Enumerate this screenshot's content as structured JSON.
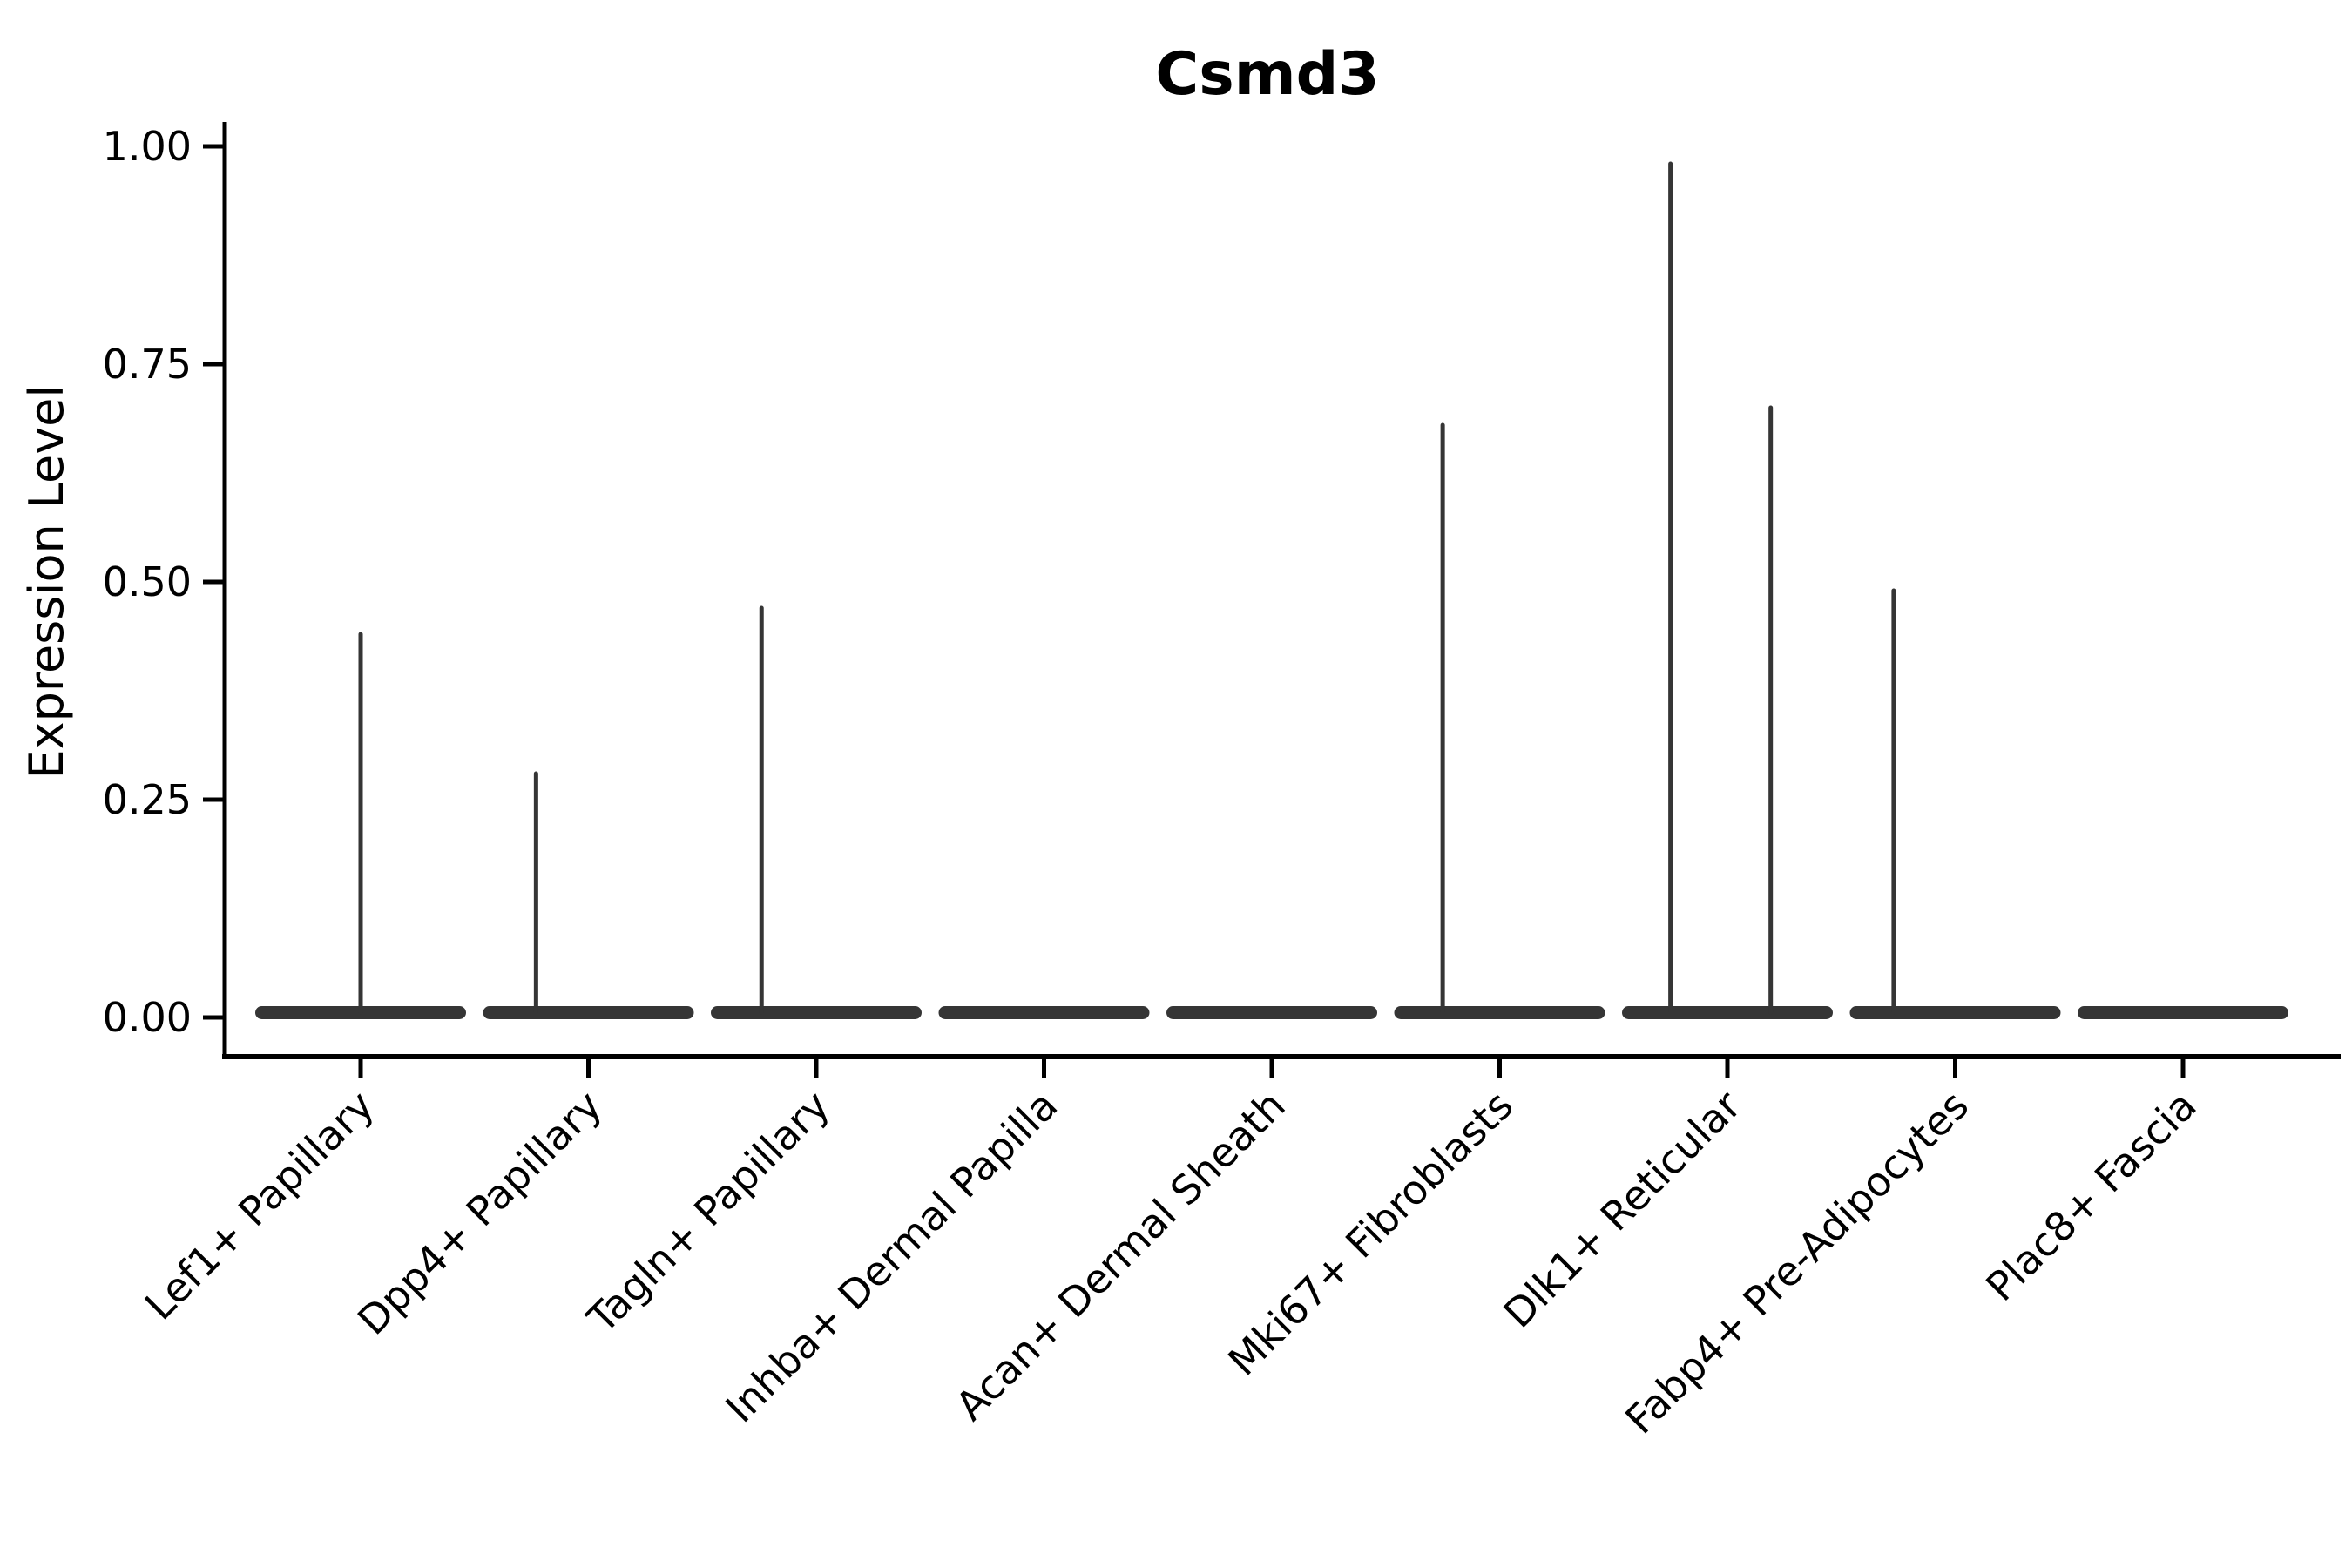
{
  "chart_data": {
    "type": "violin",
    "title": "Csmd3",
    "xlabel": "",
    "ylabel": "Expression Level",
    "ylim": [
      0.0,
      1.0
    ],
    "grid": false,
    "legend": "none",
    "yticks": [
      {
        "value": 1.0,
        "label": "1.00"
      },
      {
        "value": 0.75,
        "label": "0.75"
      },
      {
        "value": 0.5,
        "label": "0.50"
      },
      {
        "value": 0.25,
        "label": "0.25"
      },
      {
        "value": 0.0,
        "label": "0.00"
      }
    ],
    "categories": [
      "Lef1+ Papillary",
      "Dpp4+ Papillary",
      "Tagln+ Papillary",
      "Inhba+ Dermal Papilla",
      "Acan+ Dermal Sheath",
      "Mki67+ Fibroblasts",
      "Dlk1+ Reticular",
      "Fabp4+ Pre-Adipocytes",
      "Plac8+ Fascia"
    ],
    "violins": [
      {
        "label": "Lef1+ Papillary",
        "body_at_zero": true,
        "spikes": [
          {
            "max_expression": 0.44,
            "offset_frac": 0.0
          }
        ]
      },
      {
        "label": "Dpp4+ Papillary",
        "body_at_zero": true,
        "spikes": [
          {
            "max_expression": 0.28,
            "offset_frac": -0.23
          }
        ]
      },
      {
        "label": "Tagln+ Papillary",
        "body_at_zero": true,
        "spikes": [
          {
            "max_expression": 0.47,
            "offset_frac": -0.24
          }
        ]
      },
      {
        "label": "Inhba+ Dermal Papilla",
        "body_at_zero": true,
        "spikes": []
      },
      {
        "label": "Acan+ Dermal Sheath",
        "body_at_zero": true,
        "spikes": []
      },
      {
        "label": "Mki67+ Fibroblasts",
        "body_at_zero": true,
        "spikes": [
          {
            "max_expression": 0.68,
            "offset_frac": -0.25
          }
        ]
      },
      {
        "label": "Dlk1+ Reticular",
        "body_at_zero": true,
        "spikes": [
          {
            "max_expression": 0.98,
            "offset_frac": -0.25
          },
          {
            "max_expression": 0.7,
            "offset_frac": 0.19
          }
        ]
      },
      {
        "label": "Fabp4+ Pre-Adipocytes",
        "body_at_zero": true,
        "spikes": [
          {
            "max_expression": 0.49,
            "offset_frac": -0.27
          }
        ]
      },
      {
        "label": "Plac8+ Fascia",
        "body_at_zero": true,
        "spikes": []
      }
    ],
    "colors": {
      "violin": "#353535",
      "axis": "#000000",
      "background": "#ffffff"
    }
  }
}
